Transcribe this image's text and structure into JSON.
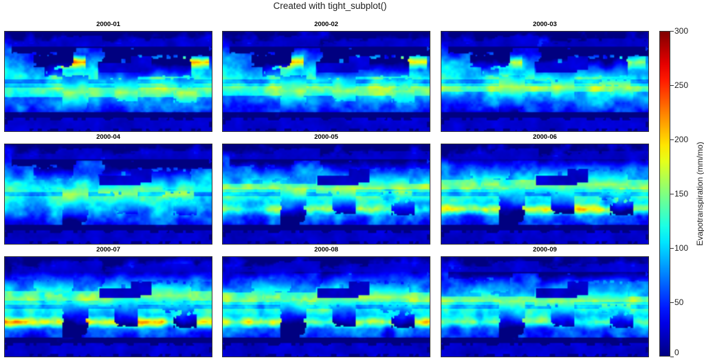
{
  "figure": {
    "title": "Created with tight_subplot()"
  },
  "chart_data": {
    "type": "heatmap",
    "variable_label": "Evapotranspiration (mm/mo)",
    "colormap": "jet",
    "color_limits": [
      0,
      300
    ],
    "colorbar_ticks": [
      0,
      50,
      100,
      150,
      200,
      250,
      300
    ],
    "colorbar_tick_labels": [
      "0",
      "50",
      "100",
      "150",
      "200",
      "250",
      "300"
    ],
    "panels": [
      {
        "label": "2000-01",
        "month": 1
      },
      {
        "label": "2000-02",
        "month": 2
      },
      {
        "label": "2000-03",
        "month": 3
      },
      {
        "label": "2000-04",
        "month": 4
      },
      {
        "label": "2000-05",
        "month": 5
      },
      {
        "label": "2000-06",
        "month": 6
      },
      {
        "label": "2000-07",
        "month": 7
      },
      {
        "label": "2000-08",
        "month": 8
      },
      {
        "label": "2000-09",
        "month": 9
      }
    ]
  }
}
